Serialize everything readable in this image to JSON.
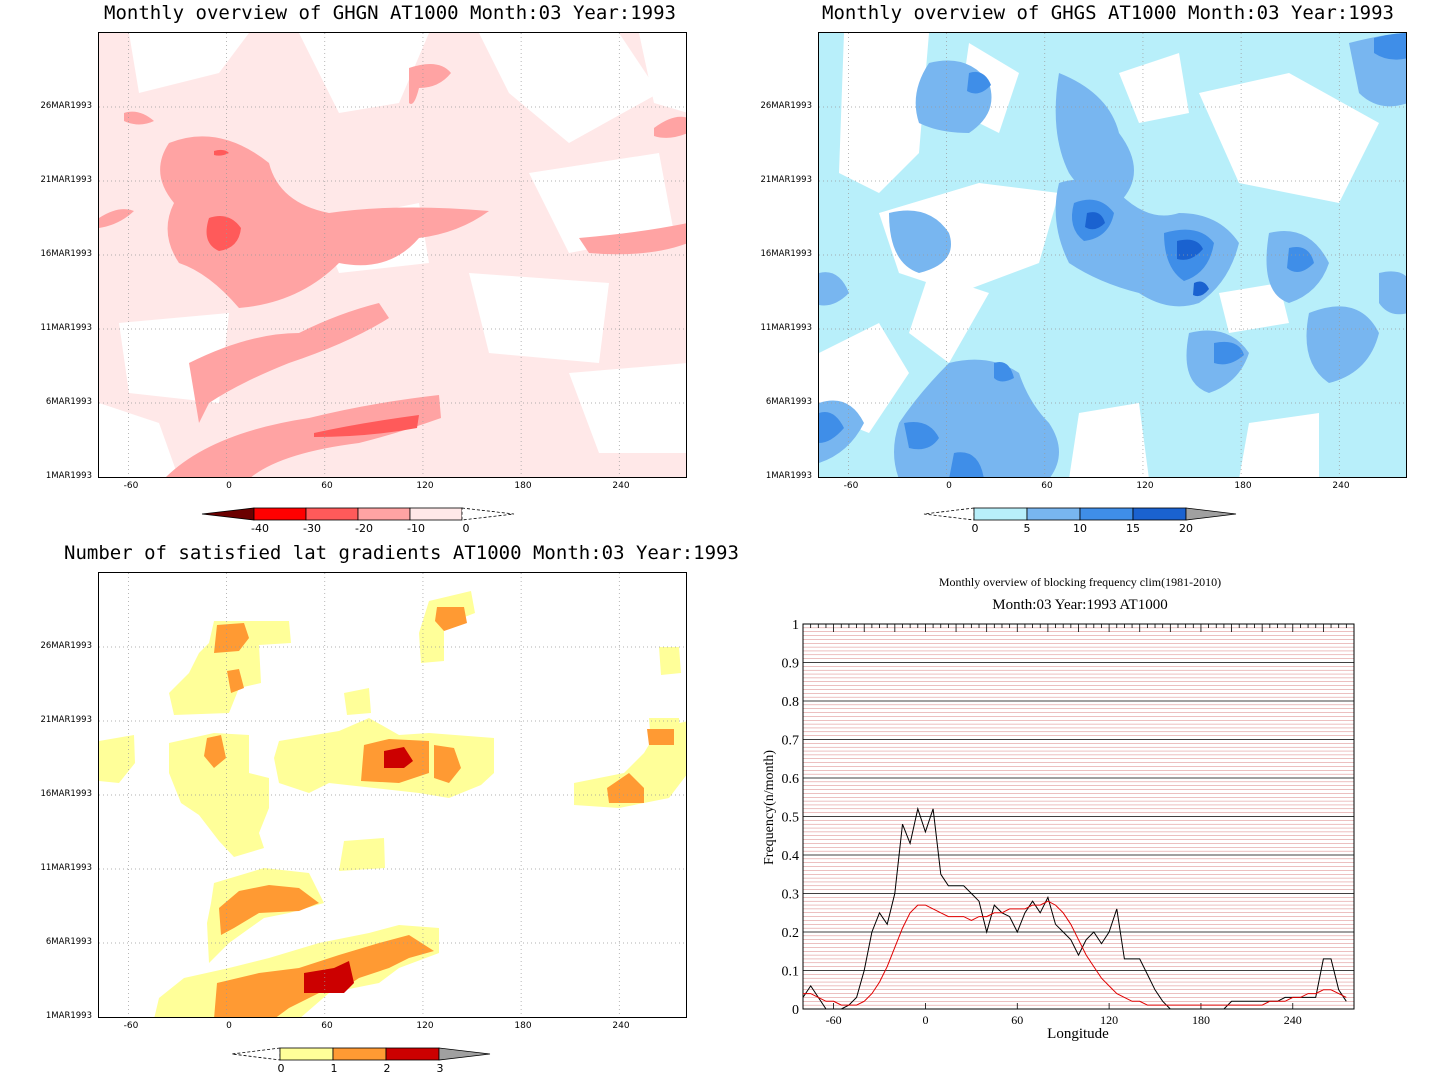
{
  "panels": {
    "ghgn": {
      "title": "Monthly overview of GHGN AT1000 Month:03 Year:1993",
      "colorbar": {
        "labels": [
          "-40",
          "-30",
          "-20",
          "-10",
          "0"
        ],
        "colors": [
          "#6b0000",
          "#ff0000",
          "#ff5a5a",
          "#ffa3a3",
          "#ffe8e8"
        ]
      }
    },
    "ghgs": {
      "title": "Monthly overview of GHGS AT1000 Month:03 Year:1993",
      "colorbar": {
        "labels": [
          "0",
          "5",
          "10",
          "15",
          "20"
        ],
        "colors": [
          "#b8effa",
          "#78b6f0",
          "#3f8ee8",
          "#1a62d0",
          "#a0a0a0"
        ]
      }
    },
    "latgrad": {
      "title": "Number of satisfied lat gradients AT1000 Month:03 Year:1993",
      "colorbar": {
        "labels": [
          "0",
          "1",
          "2",
          "3"
        ],
        "colors": [
          "#ffff99",
          "#ff9a33",
          "#cc0000",
          "#a0a0a0"
        ]
      }
    },
    "blocking": {
      "title": "Monthly overview of blocking frequency clim(1981-2010)",
      "subtitle": "Month:03 Year:1993  AT1000",
      "xlabel": "Longitude",
      "ylabel": "Frequency(n/month)"
    }
  },
  "map_axes": {
    "y_ticks": [
      "26MAR1993",
      "21MAR1993",
      "16MAR1993",
      "11MAR1993",
      "6MAR1993",
      "1MAR1993"
    ],
    "x_ticks": [
      "-60",
      "0",
      "60",
      "120",
      "180",
      "240"
    ]
  },
  "chart_data": [
    {
      "type": "heatmap",
      "title": "Monthly overview of GHGN AT1000 Month:03 Year:1993",
      "x_ticks": [
        -60,
        0,
        60,
        120,
        180,
        240
      ],
      "y_ticks": [
        "26MAR1993",
        "21MAR1993",
        "16MAR1993",
        "11MAR1993",
        "6MAR1993",
        "1MAR1993"
      ],
      "colorbar_levels": [
        -40,
        -30,
        -20,
        -10,
        0
      ]
    },
    {
      "type": "heatmap",
      "title": "Monthly overview of GHGS AT1000 Month:03 Year:1993",
      "x_ticks": [
        -60,
        0,
        60,
        120,
        180,
        240
      ],
      "y_ticks": [
        "26MAR1993",
        "21MAR1993",
        "16MAR1993",
        "11MAR1993",
        "6MAR1993",
        "1MAR1993"
      ],
      "colorbar_levels": [
        0,
        5,
        10,
        15,
        20
      ]
    },
    {
      "type": "heatmap",
      "title": "Number of satisfied lat gradients AT1000 Month:03 Year:1993",
      "x_ticks": [
        -60,
        0,
        60,
        120,
        180,
        240
      ],
      "y_ticks": [
        "26MAR1993",
        "21MAR1993",
        "16MAR1993",
        "11MAR1993",
        "6MAR1993",
        "1MAR1993"
      ],
      "colorbar_levels": [
        0,
        1,
        2,
        3
      ]
    },
    {
      "type": "line",
      "title": "Monthly overview of blocking frequency clim(1981-2010)",
      "subtitle": "Month:03 Year:1993  AT1000",
      "xlabel": "Longitude",
      "ylabel": "Frequency(n/month)",
      "xlim": [
        -80,
        280
      ],
      "ylim": [
        0,
        1
      ],
      "x_ticks": [
        -60,
        0,
        60,
        120,
        180,
        240
      ],
      "y_ticks": [
        0,
        0.1,
        0.2,
        0.3,
        0.4,
        0.5,
        0.6,
        0.7,
        0.8,
        0.9,
        1
      ],
      "grid": true,
      "series": [
        {
          "color": "#000000",
          "x": [
            -80,
            -75,
            -70,
            -65,
            -60,
            -55,
            -50,
            -45,
            -40,
            -35,
            -30,
            -25,
            -20,
            -15,
            -10,
            -5,
            0,
            5,
            10,
            15,
            20,
            25,
            30,
            35,
            40,
            45,
            50,
            55,
            60,
            65,
            70,
            75,
            80,
            85,
            90,
            95,
            100,
            105,
            110,
            115,
            120,
            125,
            130,
            135,
            140,
            145,
            150,
            155,
            160,
            165,
            170,
            175,
            180,
            185,
            190,
            195,
            200,
            205,
            210,
            215,
            220,
            225,
            230,
            235,
            240,
            245,
            250,
            255,
            260,
            265,
            270,
            275
          ],
          "y": [
            0.03,
            0.06,
            0.03,
            0.0,
            0.0,
            0.0,
            0.01,
            0.03,
            0.1,
            0.2,
            0.25,
            0.22,
            0.3,
            0.48,
            0.43,
            0.52,
            0.46,
            0.52,
            0.35,
            0.32,
            0.32,
            0.32,
            0.3,
            0.28,
            0.2,
            0.27,
            0.25,
            0.24,
            0.2,
            0.25,
            0.28,
            0.25,
            0.29,
            0.22,
            0.2,
            0.18,
            0.14,
            0.18,
            0.2,
            0.17,
            0.2,
            0.26,
            0.13,
            0.13,
            0.13,
            0.09,
            0.05,
            0.02,
            0.0,
            0.0,
            0.0,
            0.0,
            0.0,
            0.0,
            0.0,
            0.0,
            0.02,
            0.02,
            0.02,
            0.02,
            0.02,
            0.02,
            0.02,
            0.03,
            0.03,
            0.03,
            0.03,
            0.03,
            0.13,
            0.13,
            0.05,
            0.02
          ]
        },
        {
          "color": "#e00000",
          "x": [
            -80,
            -75,
            -70,
            -65,
            -60,
            -55,
            -50,
            -45,
            -40,
            -35,
            -30,
            -25,
            -20,
            -15,
            -10,
            -5,
            0,
            5,
            10,
            15,
            20,
            25,
            30,
            35,
            40,
            45,
            50,
            55,
            60,
            65,
            70,
            75,
            80,
            85,
            90,
            95,
            100,
            105,
            110,
            115,
            120,
            125,
            130,
            135,
            140,
            145,
            150,
            155,
            160,
            165,
            170,
            175,
            180,
            185,
            190,
            195,
            200,
            205,
            210,
            215,
            220,
            225,
            230,
            235,
            240,
            245,
            250,
            255,
            260,
            265,
            270,
            275
          ],
          "y": [
            0.04,
            0.04,
            0.03,
            0.02,
            0.02,
            0.01,
            0.01,
            0.01,
            0.02,
            0.04,
            0.07,
            0.11,
            0.16,
            0.21,
            0.25,
            0.27,
            0.27,
            0.26,
            0.25,
            0.24,
            0.24,
            0.24,
            0.23,
            0.24,
            0.24,
            0.25,
            0.25,
            0.26,
            0.26,
            0.26,
            0.27,
            0.27,
            0.28,
            0.27,
            0.25,
            0.22,
            0.18,
            0.14,
            0.11,
            0.08,
            0.06,
            0.04,
            0.03,
            0.02,
            0.02,
            0.01,
            0.01,
            0.01,
            0.01,
            0.01,
            0.01,
            0.01,
            0.01,
            0.01,
            0.01,
            0.01,
            0.01,
            0.01,
            0.01,
            0.01,
            0.01,
            0.02,
            0.02,
            0.02,
            0.03,
            0.03,
            0.04,
            0.04,
            0.05,
            0.05,
            0.04,
            0.03
          ]
        }
      ]
    }
  ]
}
